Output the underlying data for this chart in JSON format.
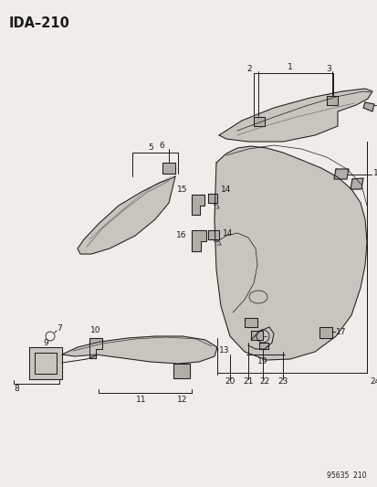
{
  "title": "IDA–210",
  "footer": "95635  210",
  "bg_color": "#f0ede8",
  "line_color": "#1a1a1a",
  "fill_light": "#c8c4be",
  "fill_mid": "#b0aca6",
  "text_color": "#1a1a1a",
  "title_fontsize": 10.5,
  "label_fontsize": 6.5,
  "footer_fontsize": 5.5,
  "fig_width": 4.14,
  "fig_height": 5.33,
  "dpi": 100
}
